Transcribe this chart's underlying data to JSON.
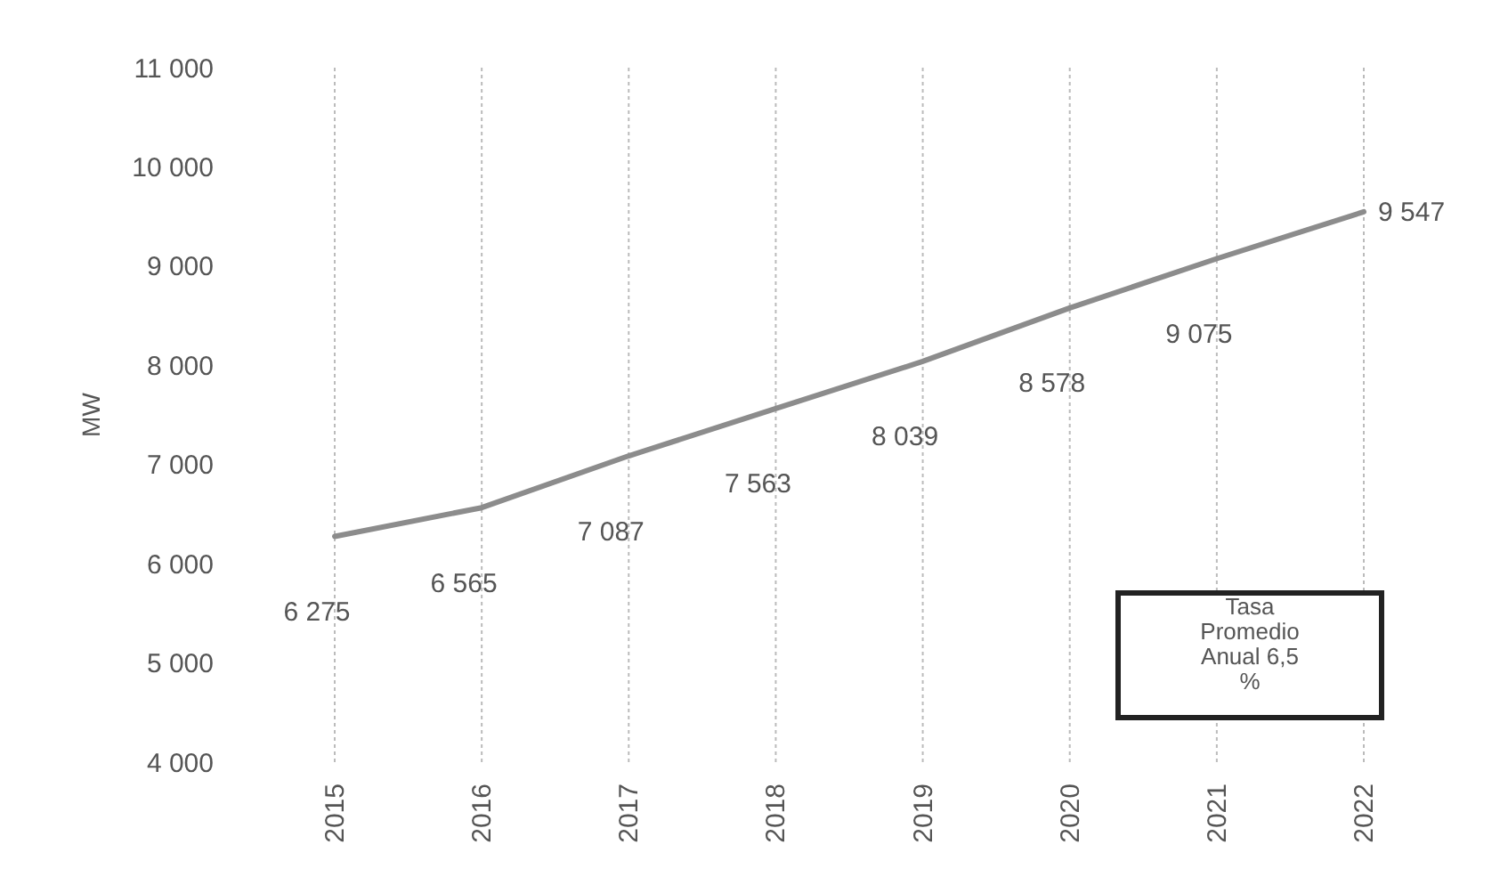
{
  "chart_data": {
    "type": "line",
    "ylabel": "MW",
    "categories": [
      "2015",
      "2016",
      "2017",
      "2018",
      "2019",
      "2020",
      "2021",
      "2022"
    ],
    "series": [
      {
        "color": "#8c8c8c",
        "values": [
          6275,
          6565,
          7087,
          7563,
          8039,
          8578,
          9075,
          9547
        ]
      }
    ],
    "value_labels": [
      "6 275",
      "6 565",
      "7 087",
      "7 563",
      "8 039",
      "8 578",
      "9 075",
      "9 547"
    ],
    "ylim": [
      4000,
      11000
    ],
    "yticks": [
      {
        "value": 4000,
        "label": "4 000"
      },
      {
        "value": 5000,
        "label": "5 000"
      },
      {
        "value": 6000,
        "label": "6 000"
      },
      {
        "value": 7000,
        "label": "7 000"
      },
      {
        "value": 8000,
        "label": "8 000"
      },
      {
        "value": 9000,
        "label": "9 000"
      },
      {
        "value": 10000,
        "label": "10 000"
      },
      {
        "value": 11000,
        "label": "11 000"
      }
    ],
    "grid": "x",
    "marker": "none",
    "line_style": "solid",
    "annotations": [
      "Tasa Promedio Anual 6,5 %"
    ]
  }
}
